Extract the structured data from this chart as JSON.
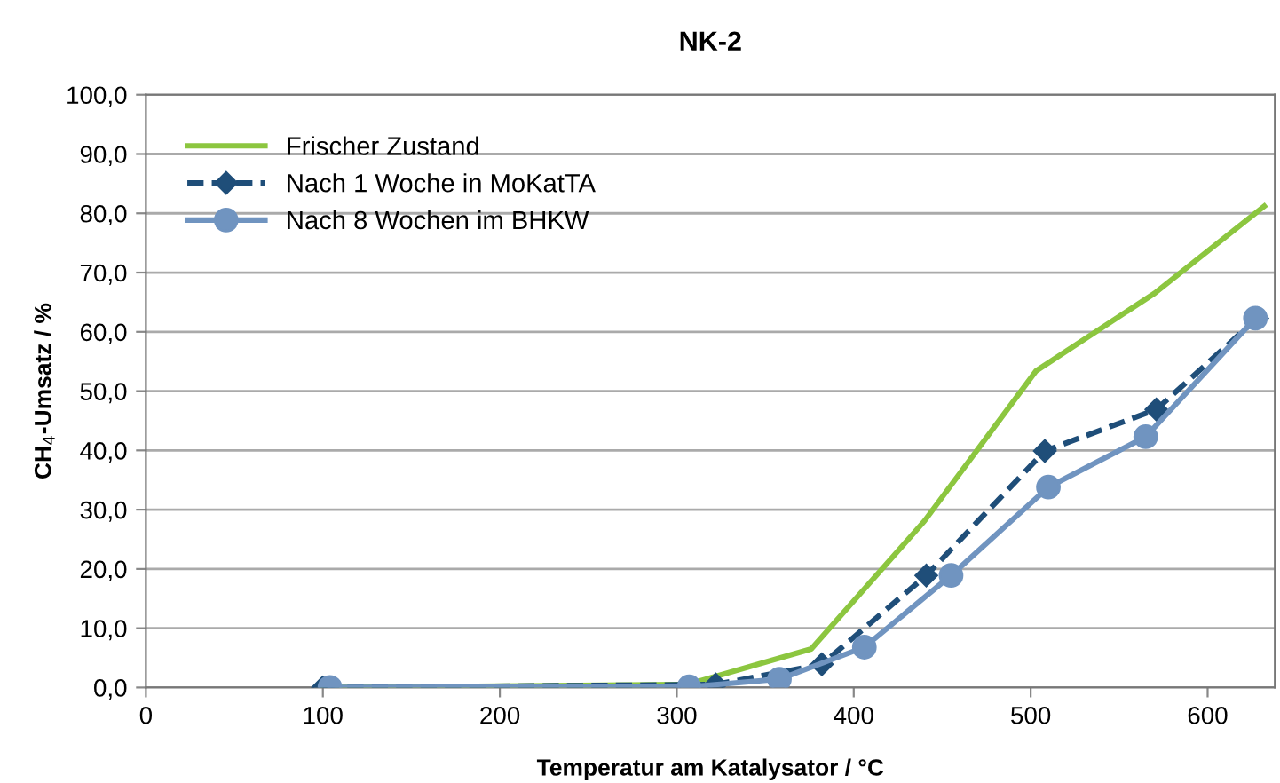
{
  "chart_data": {
    "type": "line",
    "title": "NK-2",
    "xlabel": "Temperatur am Katalysator / °C",
    "ylabel": "CH$_{4}$-Umsatz / %",
    "xlim": [
      0,
      638
    ],
    "xticks": [
      0,
      100,
      200,
      300,
      400,
      500,
      600
    ],
    "ylim": [
      0,
      100
    ],
    "yticks": [
      {
        "value": 0,
        "label": "0,0"
      },
      {
        "value": 10,
        "label": "10,0"
      },
      {
        "value": 20,
        "label": "20,0"
      },
      {
        "value": 30,
        "label": "30,0"
      },
      {
        "value": 40,
        "label": "40,0"
      },
      {
        "value": 50,
        "label": "50,0"
      },
      {
        "value": 60,
        "label": "60,0"
      },
      {
        "value": 70,
        "label": "70,0"
      },
      {
        "value": 80,
        "label": "80,0"
      },
      {
        "value": 90,
        "label": "90,0"
      },
      {
        "value": 100,
        "label": "100,0"
      }
    ],
    "grid": "y",
    "legend": "top left",
    "series": [
      {
        "name": "Frischer Zustand",
        "color": "#8cc63f",
        "marker": "none",
        "line_style": "solid",
        "x": [
          100,
          306,
          376,
          440,
          503,
          570,
          632
        ],
        "values": [
          0,
          0.5,
          6.5,
          28.1,
          53.4,
          66.5,
          81.2
        ]
      },
      {
        "name": "Nach 1 Woche in MoKatTA",
        "color": "#1f4e79",
        "marker": "diamond",
        "line_style": "dashed",
        "x": [
          100,
          322,
          382,
          441,
          508,
          571,
          628
        ],
        "values": [
          0,
          0.5,
          3.9,
          18.9,
          39.9,
          46.9,
          62.3
        ]
      },
      {
        "name": "Nach 8 Wochen im BHKW",
        "color": "#7094c0",
        "marker": "circle",
        "line_style": "solid",
        "x": [
          104,
          307,
          358,
          406,
          455,
          510,
          565,
          627
        ],
        "values": [
          0,
          0.1,
          1.4,
          6.8,
          18.9,
          33.8,
          42.3,
          62.3
        ]
      }
    ]
  }
}
